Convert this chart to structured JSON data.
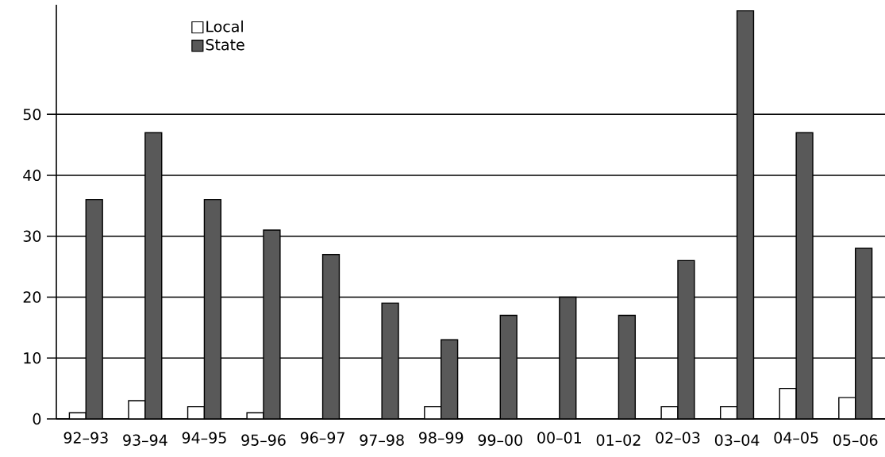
{
  "chart_data": {
    "type": "bar",
    "categories": [
      "92–93",
      "93–94",
      "94–95",
      "95–96",
      "96–97",
      "97–98",
      "98–99",
      "99–00",
      "00–01",
      "01–02",
      "02–03",
      "03–04",
      "04–05",
      "05–06"
    ],
    "series": [
      {
        "name": "Local",
        "color": "#ffffff",
        "values": [
          1,
          3,
          2,
          1,
          null,
          null,
          2,
          null,
          null,
          null,
          2,
          2,
          5,
          3.5
        ]
      },
      {
        "name": "State",
        "color": "#595959",
        "values": [
          36,
          47,
          36,
          31,
          27,
          19,
          13,
          17,
          20,
          17,
          26,
          67,
          47,
          28
        ]
      }
    ],
    "ylim": [
      0,
      68
    ],
    "yticks": [
      0,
      10,
      20,
      30,
      40,
      50
    ],
    "grid": "y",
    "legend": "top left"
  }
}
